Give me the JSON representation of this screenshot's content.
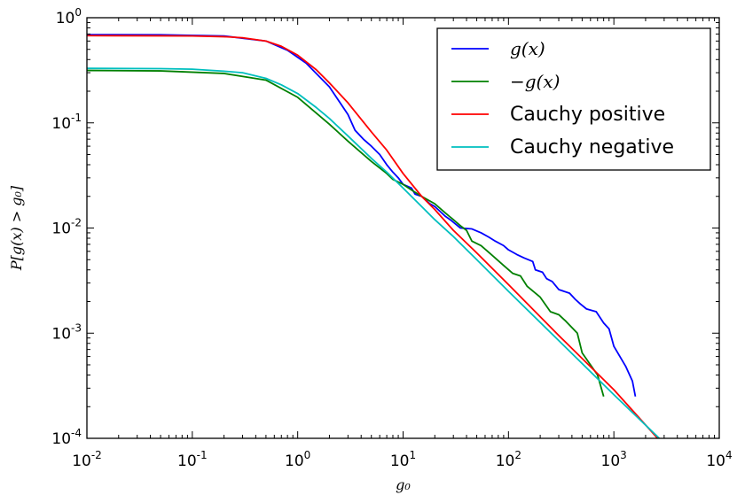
{
  "chart_data": {
    "type": "line",
    "title": "",
    "xlabel": "g₀",
    "ylabel": "P[g(x) > g₀]",
    "x_scale": "log",
    "y_scale": "log",
    "xlim": [
      0.01,
      10000
    ],
    "ylim": [
      0.0001,
      1
    ],
    "x_ticks": [
      {
        "value": 0.01,
        "base": "10",
        "exp": "-2"
      },
      {
        "value": 0.1,
        "base": "10",
        "exp": "-1"
      },
      {
        "value": 1,
        "base": "10",
        "exp": "0"
      },
      {
        "value": 10,
        "base": "10",
        "exp": "1"
      },
      {
        "value": 100,
        "base": "10",
        "exp": "2"
      },
      {
        "value": 1000,
        "base": "10",
        "exp": "3"
      },
      {
        "value": 10000,
        "base": "10",
        "exp": "4"
      }
    ],
    "y_ticks": [
      {
        "value": 0.0001,
        "base": "10",
        "exp": "-4"
      },
      {
        "value": 0.001,
        "base": "10",
        "exp": "-3"
      },
      {
        "value": 0.01,
        "base": "10",
        "exp": "-2"
      },
      {
        "value": 0.1,
        "base": "10",
        "exp": "-1"
      },
      {
        "value": 1,
        "base": "10",
        "exp": "0"
      }
    ],
    "grid": false,
    "legend_position": "top-right",
    "series": [
      {
        "name": "g(x)",
        "color": "#0000ff",
        "points": [
          [
            0.01,
            0.69
          ],
          [
            0.05,
            0.688
          ],
          [
            0.2,
            0.67
          ],
          [
            0.5,
            0.6
          ],
          [
            0.8,
            0.49
          ],
          [
            1.2,
            0.37
          ],
          [
            2,
            0.22
          ],
          [
            3,
            0.12
          ],
          [
            3.5,
            0.085
          ],
          [
            4.2,
            0.07
          ],
          [
            5,
            0.06
          ],
          [
            6,
            0.05
          ],
          [
            7,
            0.04
          ],
          [
            8,
            0.034
          ],
          [
            9,
            0.03
          ],
          [
            10,
            0.026
          ],
          [
            12,
            0.024
          ],
          [
            13,
            0.021
          ],
          [
            15,
            0.02
          ],
          [
            18,
            0.017
          ],
          [
            20,
            0.016
          ],
          [
            25,
            0.013
          ],
          [
            28,
            0.012
          ],
          [
            35,
            0.01
          ],
          [
            45,
            0.0098
          ],
          [
            55,
            0.009
          ],
          [
            65,
            0.0082
          ],
          [
            75,
            0.0075
          ],
          [
            90,
            0.0068
          ],
          [
            100,
            0.0062
          ],
          [
            120,
            0.0056
          ],
          [
            140,
            0.0052
          ],
          [
            170,
            0.0048
          ],
          [
            180,
            0.004
          ],
          [
            210,
            0.0038
          ],
          [
            230,
            0.0033
          ],
          [
            260,
            0.0031
          ],
          [
            300,
            0.0026
          ],
          [
            380,
            0.0024
          ],
          [
            430,
            0.0021
          ],
          [
            480,
            0.0019
          ],
          [
            550,
            0.0017
          ],
          [
            680,
            0.0016
          ],
          [
            800,
            0.00125
          ],
          [
            900,
            0.0011
          ],
          [
            1000,
            0.00075
          ],
          [
            1300,
            0.00048
          ],
          [
            1500,
            0.00035
          ],
          [
            1600,
            0.00025
          ]
        ]
      },
      {
        "name": "−g(x)",
        "color": "#008000",
        "points": [
          [
            0.01,
            0.315
          ],
          [
            0.05,
            0.312
          ],
          [
            0.2,
            0.295
          ],
          [
            0.5,
            0.255
          ],
          [
            1,
            0.175
          ],
          [
            2,
            0.097
          ],
          [
            3,
            0.067
          ],
          [
            5,
            0.043
          ],
          [
            7,
            0.033
          ],
          [
            8,
            0.029
          ],
          [
            10,
            0.026
          ],
          [
            12,
            0.023
          ],
          [
            15,
            0.02
          ],
          [
            20,
            0.017
          ],
          [
            25,
            0.014
          ],
          [
            30,
            0.012
          ],
          [
            35,
            0.0105
          ],
          [
            40,
            0.0095
          ],
          [
            45,
            0.0075
          ],
          [
            55,
            0.0068
          ],
          [
            70,
            0.0055
          ],
          [
            90,
            0.0044
          ],
          [
            110,
            0.0037
          ],
          [
            130,
            0.0035
          ],
          [
            150,
            0.0028
          ],
          [
            200,
            0.0022
          ],
          [
            250,
            0.0016
          ],
          [
            300,
            0.0015
          ],
          [
            350,
            0.0013
          ],
          [
            450,
            0.001
          ],
          [
            500,
            0.00065
          ],
          [
            600,
            0.0005
          ],
          [
            700,
            0.0004
          ],
          [
            800,
            0.00025
          ]
        ]
      },
      {
        "name": "Cauchy positive",
        "color": "#ff0000",
        "points": [
          [
            0.01,
            0.675
          ],
          [
            0.05,
            0.673
          ],
          [
            0.1,
            0.67
          ],
          [
            0.2,
            0.66
          ],
          [
            0.3,
            0.645
          ],
          [
            0.5,
            0.6
          ],
          [
            0.7,
            0.535
          ],
          [
            1,
            0.44
          ],
          [
            1.5,
            0.32
          ],
          [
            2,
            0.24
          ],
          [
            3,
            0.155
          ],
          [
            5,
            0.082
          ],
          [
            7,
            0.055
          ],
          [
            10,
            0.033
          ],
          [
            15,
            0.02
          ],
          [
            20,
            0.015
          ],
          [
            30,
            0.0095
          ],
          [
            50,
            0.0058
          ],
          [
            100,
            0.0029
          ],
          [
            300,
            0.00095
          ],
          [
            1000,
            0.00029
          ],
          [
            2600,
            0.0001
          ]
        ]
      },
      {
        "name": "Cauchy negative",
        "color": "#00bfbf",
        "points": [
          [
            0.01,
            0.33
          ],
          [
            0.05,
            0.328
          ],
          [
            0.1,
            0.324
          ],
          [
            0.2,
            0.31
          ],
          [
            0.3,
            0.3
          ],
          [
            0.5,
            0.265
          ],
          [
            0.7,
            0.23
          ],
          [
            1,
            0.19
          ],
          [
            1.5,
            0.14
          ],
          [
            2,
            0.11
          ],
          [
            3,
            0.075
          ],
          [
            5,
            0.046
          ],
          [
            7,
            0.034
          ],
          [
            10,
            0.024
          ],
          [
            15,
            0.016
          ],
          [
            20,
            0.012
          ],
          [
            30,
            0.0083
          ],
          [
            50,
            0.005
          ],
          [
            100,
            0.0025
          ],
          [
            300,
            0.00085
          ],
          [
            1000,
            0.00026
          ],
          [
            2700,
            0.0001
          ]
        ]
      }
    ]
  }
}
